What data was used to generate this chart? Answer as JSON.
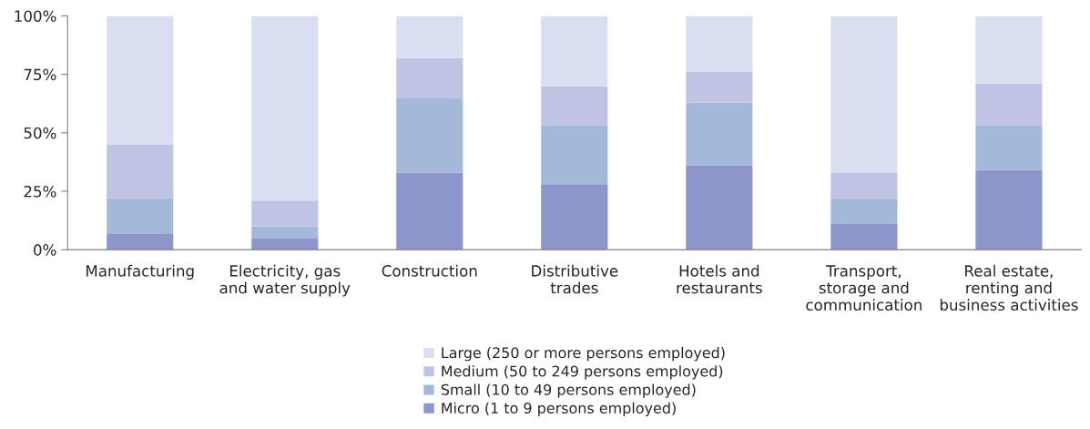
{
  "chart_data": {
    "type": "bar",
    "stacked": true,
    "categories": [
      "Manufacturing",
      "Electricity, gas\nand water supply",
      "Construction",
      "Distributive\ntrades",
      "Hotels and\nrestaurants",
      "Transport,\nstorage and\ncommunication",
      "Real estate,\nrenting and\nbusiness activities"
    ],
    "series": [
      {
        "name": "Micro (1 to 9 persons employed)",
        "color": "#8c96cb",
        "values": [
          7,
          5,
          33,
          28,
          36,
          11,
          34
        ]
      },
      {
        "name": "Small (10 to 49 persons employed)",
        "color": "#a4b9d9",
        "values": [
          15,
          5,
          32,
          25,
          27,
          11,
          19
        ]
      },
      {
        "name": "Medium (50 to 249 persons employed)",
        "color": "#bfc4e5",
        "values": [
          23,
          11,
          17,
          17,
          13,
          11,
          18
        ]
      },
      {
        "name": "Large (250 or more persons employed)",
        "color": "#dadef1",
        "values": [
          55,
          79,
          18,
          30,
          24,
          67,
          29
        ]
      }
    ],
    "ylim": [
      0,
      100
    ],
    "yticks": [
      {
        "value": 0,
        "label": "0%"
      },
      {
        "value": 25,
        "label": "25%"
      },
      {
        "value": 50,
        "label": "50%"
      },
      {
        "value": 75,
        "label": "75%"
      },
      {
        "value": 100,
        "label": "100%"
      }
    ],
    "grid": false,
    "legend": "bottom"
  }
}
